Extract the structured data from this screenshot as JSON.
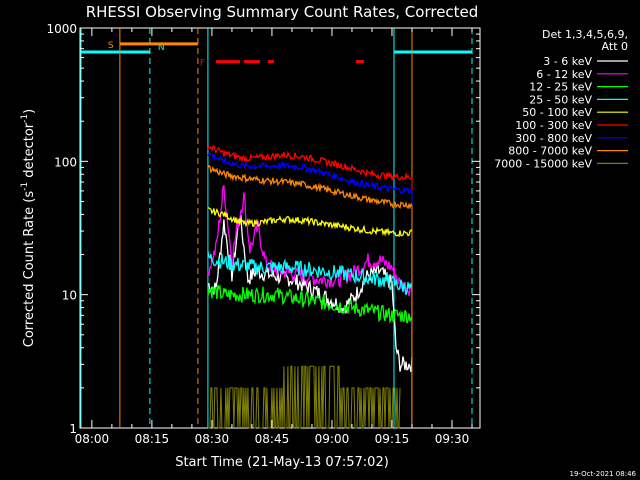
{
  "chart_data": {
    "type": "line",
    "title": "RHESSI Observing Summary Count Rates, Corrected",
    "xlabel": "Start Time (21-May-13 07:57:02)",
    "ylabel_main": "Corrected Count Rate (s",
    "ylabel_sup1": "-1",
    "ylabel_mid": " detector",
    "ylabel_sup2": "-1",
    "ylabel_end": ")",
    "y_scale": "log",
    "ylim": [
      1,
      1000
    ],
    "xlim": [
      "07:57:02",
      "09:37:00"
    ],
    "x_ticks": [
      "08:00",
      "08:15",
      "08:30",
      "08:45",
      "09:00",
      "09:15",
      "09:30"
    ],
    "y_ticks": [
      "1",
      "10",
      "100",
      "1000"
    ],
    "timestamp": "19-Oct-2021 08:46",
    "legend": {
      "header1": "Det 1,3,4,5,6,9,",
      "header2": "Att 0",
      "entries": [
        {
          "label": "3 - 6 keV",
          "color": "#ffffff"
        },
        {
          "label": "6 - 12 keV",
          "color": "#ff00ff"
        },
        {
          "label": "12 - 25 keV",
          "color": "#00ff00"
        },
        {
          "label": "25 - 50 keV",
          "color": "#00ffff"
        },
        {
          "label": "50 - 100 keV",
          "color": "#ffff00"
        },
        {
          "label": "100 - 300 keV",
          "color": "#ff0000"
        },
        {
          "label": "300 - 800 keV",
          "color": "#0000ff"
        },
        {
          "label": "800 - 7000 keV",
          "color": "#ff8800"
        },
        {
          "label": "7000 - 15000 keV",
          "color": "#808000"
        }
      ]
    },
    "flag_labels": {
      "saa": "S",
      "night": "N",
      "flare": "F"
    },
    "night_intervals": [
      [
        "07:57:02",
        "08:14:30"
      ],
      [
        "09:15:30",
        "09:35:00"
      ]
    ],
    "saa_interval": [
      "08:07:00",
      "08:26:30"
    ],
    "flare_segments": [
      [
        "08:31:00",
        "08:37:00"
      ],
      [
        "08:38:00",
        "08:42:00"
      ],
      [
        "08:44:00",
        "08:45:30"
      ],
      [
        "09:06:00",
        "09:08:00"
      ]
    ],
    "data_window": [
      "08:29:00",
      "09:20:00"
    ],
    "series": [
      {
        "name": "3 - 6 keV",
        "color": "#ffffff",
        "points": [
          [
            "08:29:00",
            12
          ],
          [
            "08:31:00",
            11
          ],
          [
            "08:33:00",
            35
          ],
          [
            "08:35:00",
            14
          ],
          [
            "08:37:00",
            40
          ],
          [
            "08:39:00",
            13
          ],
          [
            "08:41:00",
            15
          ],
          [
            "08:45:00",
            14
          ],
          [
            "08:50:00",
            13
          ],
          [
            "08:55:00",
            11
          ],
          [
            "09:00:00",
            9
          ],
          [
            "09:03:00",
            8
          ],
          [
            "09:06:00",
            10
          ],
          [
            "09:09:00",
            14
          ],
          [
            "09:12:00",
            15
          ],
          [
            "09:15:00",
            12
          ],
          [
            "09:16:00",
            4
          ],
          [
            "09:17:00",
            3
          ],
          [
            "09:20:00",
            3
          ]
        ]
      },
      {
        "name": "6 - 12 keV",
        "color": "#ff00ff",
        "points": [
          [
            "08:29:00",
            15
          ],
          [
            "08:31:00",
            22
          ],
          [
            "08:33:00",
            65
          ],
          [
            "08:35:00",
            18
          ],
          [
            "08:36:30",
            35
          ],
          [
            "08:38:00",
            55
          ],
          [
            "08:39:30",
            22
          ],
          [
            "08:41:30",
            32
          ],
          [
            "08:43:30",
            17
          ],
          [
            "08:47:00",
            15
          ],
          [
            "08:52:00",
            14
          ],
          [
            "08:57:00",
            13
          ],
          [
            "09:02:00",
            13
          ],
          [
            "09:06:00",
            15
          ],
          [
            "09:09:00",
            18
          ],
          [
            "09:12:00",
            18
          ],
          [
            "09:15:00",
            16
          ],
          [
            "09:17:00",
            12
          ],
          [
            "09:20:00",
            11
          ]
        ]
      },
      {
        "name": "12 - 25 keV",
        "color": "#00ff00",
        "points": [
          [
            "08:29:00",
            11
          ],
          [
            "08:33:00",
            10
          ],
          [
            "08:37:00",
            10
          ],
          [
            "08:41:00",
            10
          ],
          [
            "08:46:00",
            10
          ],
          [
            "08:50:00",
            9.5
          ],
          [
            "08:55:00",
            9
          ],
          [
            "09:00:00",
            8.5
          ],
          [
            "09:05:00",
            8
          ],
          [
            "09:10:00",
            7.5
          ],
          [
            "09:15:00",
            7
          ],
          [
            "09:20:00",
            7
          ]
        ]
      },
      {
        "name": "25 - 50 keV",
        "color": "#00ffff",
        "points": [
          [
            "08:29:00",
            19
          ],
          [
            "08:35:00",
            17
          ],
          [
            "08:42:00",
            16
          ],
          [
            "08:50:00",
            16
          ],
          [
            "08:58:00",
            15
          ],
          [
            "09:05:00",
            14
          ],
          [
            "09:12:00",
            13
          ],
          [
            "09:16:00",
            12
          ],
          [
            "09:20:00",
            11
          ]
        ]
      },
      {
        "name": "50 - 100 keV",
        "color": "#ffff00",
        "points": [
          [
            "08:29:00",
            43
          ],
          [
            "08:33:00",
            40
          ],
          [
            "08:38:00",
            34
          ],
          [
            "08:43:00",
            35
          ],
          [
            "08:48:00",
            37
          ],
          [
            "08:53:00",
            36
          ],
          [
            "08:58:00",
            34
          ],
          [
            "09:04:00",
            32
          ],
          [
            "09:10:00",
            30
          ],
          [
            "09:15:00",
            29
          ],
          [
            "09:20:00",
            29
          ]
        ]
      },
      {
        "name": "100 - 300 keV",
        "color": "#ff0000",
        "points": [
          [
            "08:29:00",
            130
          ],
          [
            "08:33:00",
            115
          ],
          [
            "08:38:00",
            105
          ],
          [
            "08:43:00",
            107
          ],
          [
            "08:48:00",
            112
          ],
          [
            "08:53:00",
            108
          ],
          [
            "08:58:00",
            100
          ],
          [
            "09:04:00",
            90
          ],
          [
            "09:10:00",
            80
          ],
          [
            "09:15:00",
            77
          ],
          [
            "09:20:00",
            76
          ]
        ]
      },
      {
        "name": "300 - 800 keV",
        "color": "#0000ff",
        "points": [
          [
            "08:29:00",
            115
          ],
          [
            "08:33:00",
            100
          ],
          [
            "08:38:00",
            92
          ],
          [
            "08:43:00",
            92
          ],
          [
            "08:48:00",
            93
          ],
          [
            "08:53:00",
            90
          ],
          [
            "08:58:00",
            82
          ],
          [
            "09:04:00",
            72
          ],
          [
            "09:10:00",
            65
          ],
          [
            "09:15:00",
            62
          ],
          [
            "09:20:00",
            60
          ]
        ]
      },
      {
        "name": "800 - 7000 keV",
        "color": "#ff8800",
        "points": [
          [
            "08:29:00",
            90
          ],
          [
            "08:33:00",
            80
          ],
          [
            "08:38:00",
            75
          ],
          [
            "08:43:00",
            72
          ],
          [
            "08:48:00",
            70
          ],
          [
            "08:53:00",
            67
          ],
          [
            "08:58:00",
            62
          ],
          [
            "09:04:00",
            56
          ],
          [
            "09:10:00",
            51
          ],
          [
            "09:15:00",
            48
          ],
          [
            "09:20:00",
            47
          ]
        ]
      },
      {
        "name": "7000 - 15000 keV",
        "color": "#808000",
        "points": [
          [
            "08:29:00",
            1.6
          ],
          [
            "08:35:00",
            1.6
          ],
          [
            "08:40:00",
            1.5
          ],
          [
            "08:46:00",
            1.5
          ],
          [
            "08:49:00",
            2.5
          ],
          [
            "08:55:00",
            2.5
          ],
          [
            "09:00:00",
            2.5
          ],
          [
            "09:05:00",
            1.5
          ],
          [
            "09:10:00",
            1.5
          ],
          [
            "09:15:00",
            1.5
          ],
          [
            "09:17:00",
            1.0
          ]
        ]
      }
    ]
  }
}
